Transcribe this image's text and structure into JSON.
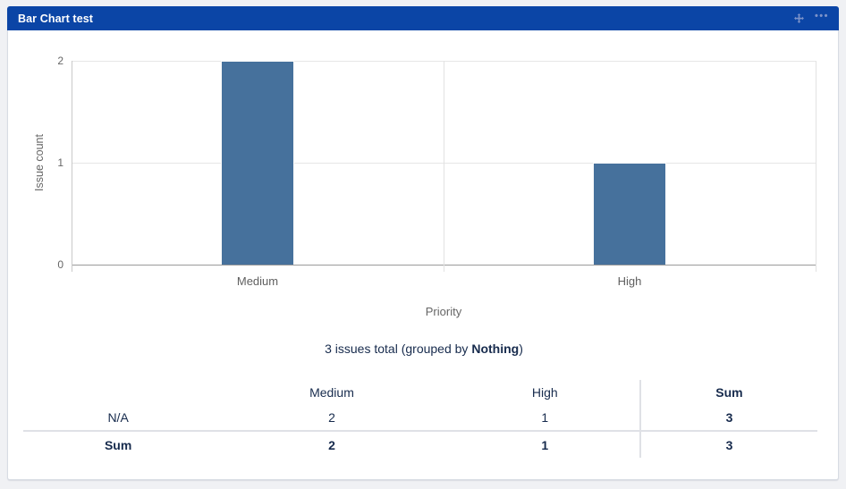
{
  "header": {
    "title": "Bar Chart test",
    "background": "#0b45a6",
    "icon_color": "#7d93c9",
    "more_label": "•••"
  },
  "chart_data": {
    "type": "bar",
    "categories": [
      "Medium",
      "High"
    ],
    "values": [
      2,
      1
    ],
    "title": "",
    "xlabel": "Priority",
    "ylabel": "Issue count",
    "ylim": [
      0,
      2
    ],
    "yticks": [
      0,
      1,
      2
    ],
    "bar_color": "#46719c",
    "grid": true,
    "legend": false
  },
  "summary": {
    "prefix": "3 issues total (grouped by ",
    "group_by": "Nothing",
    "suffix": ")"
  },
  "table": {
    "columns": [
      "",
      "Medium",
      "High",
      "Sum"
    ],
    "rows": [
      {
        "label": "N/A",
        "values": [
          "2",
          "1",
          "3"
        ],
        "total": false
      },
      {
        "label": "Sum",
        "values": [
          "2",
          "1",
          "3"
        ],
        "total": true
      }
    ]
  },
  "colors": {
    "header_bg": "#0b45a6",
    "bar": "#46719c",
    "text_navy": "#172b4d",
    "text_muted": "#666666",
    "gridline": "#e6e6e6",
    "table_border": "#dfe1e6",
    "page_bg": "#f0f1f4"
  }
}
